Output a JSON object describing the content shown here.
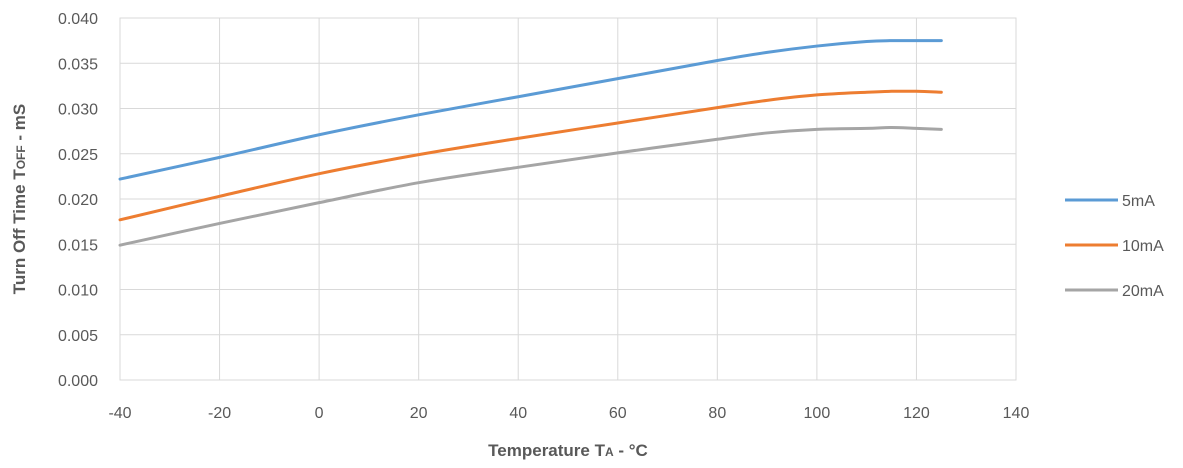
{
  "chart_data": {
    "type": "line",
    "xlabel": "Temperature TA - °C",
    "xlabel_main": "Temperature T",
    "xlabel_sub": "A",
    "xlabel_tail": " - °C",
    "ylabel": "Turn Off Time TOFF - mS",
    "ylabel_main": "Turn Off Time T",
    "ylabel_sub": "OFF",
    "ylabel_tail": " - mS",
    "xlim": [
      -40,
      140
    ],
    "ylim": [
      0.0,
      0.04
    ],
    "x_ticks": [
      "-40",
      "-20",
      "0",
      "20",
      "40",
      "60",
      "80",
      "100",
      "120",
      "140"
    ],
    "y_ticks": [
      "0.040",
      "0.035",
      "0.030",
      "0.025",
      "0.020",
      "0.015",
      "0.010",
      "0.005",
      "0.000"
    ],
    "grid": "vertical and horizontal",
    "legend_position": "right",
    "x": [
      -40,
      -20,
      0,
      20,
      40,
      60,
      80,
      90,
      100,
      110,
      115,
      120,
      125
    ],
    "series": [
      {
        "name": "5mA",
        "color": "#5b9bd5",
        "values": [
          0.0222,
          0.0246,
          0.0271,
          0.0293,
          0.0313,
          0.0333,
          0.0353,
          0.0362,
          0.0369,
          0.0374,
          0.0375,
          0.0375,
          0.0375
        ]
      },
      {
        "name": "10mA",
        "color": "#ed7d31",
        "values": [
          0.0177,
          0.0203,
          0.0228,
          0.0249,
          0.0267,
          0.0284,
          0.0301,
          0.0309,
          0.0315,
          0.0318,
          0.0319,
          0.0319,
          0.0318
        ]
      },
      {
        "name": "20mA",
        "color": "#a5a5a5",
        "values": [
          0.0149,
          0.0173,
          0.0196,
          0.0218,
          0.0235,
          0.0251,
          0.0266,
          0.0273,
          0.0277,
          0.0278,
          0.0279,
          0.0278,
          0.0277
        ]
      }
    ]
  }
}
